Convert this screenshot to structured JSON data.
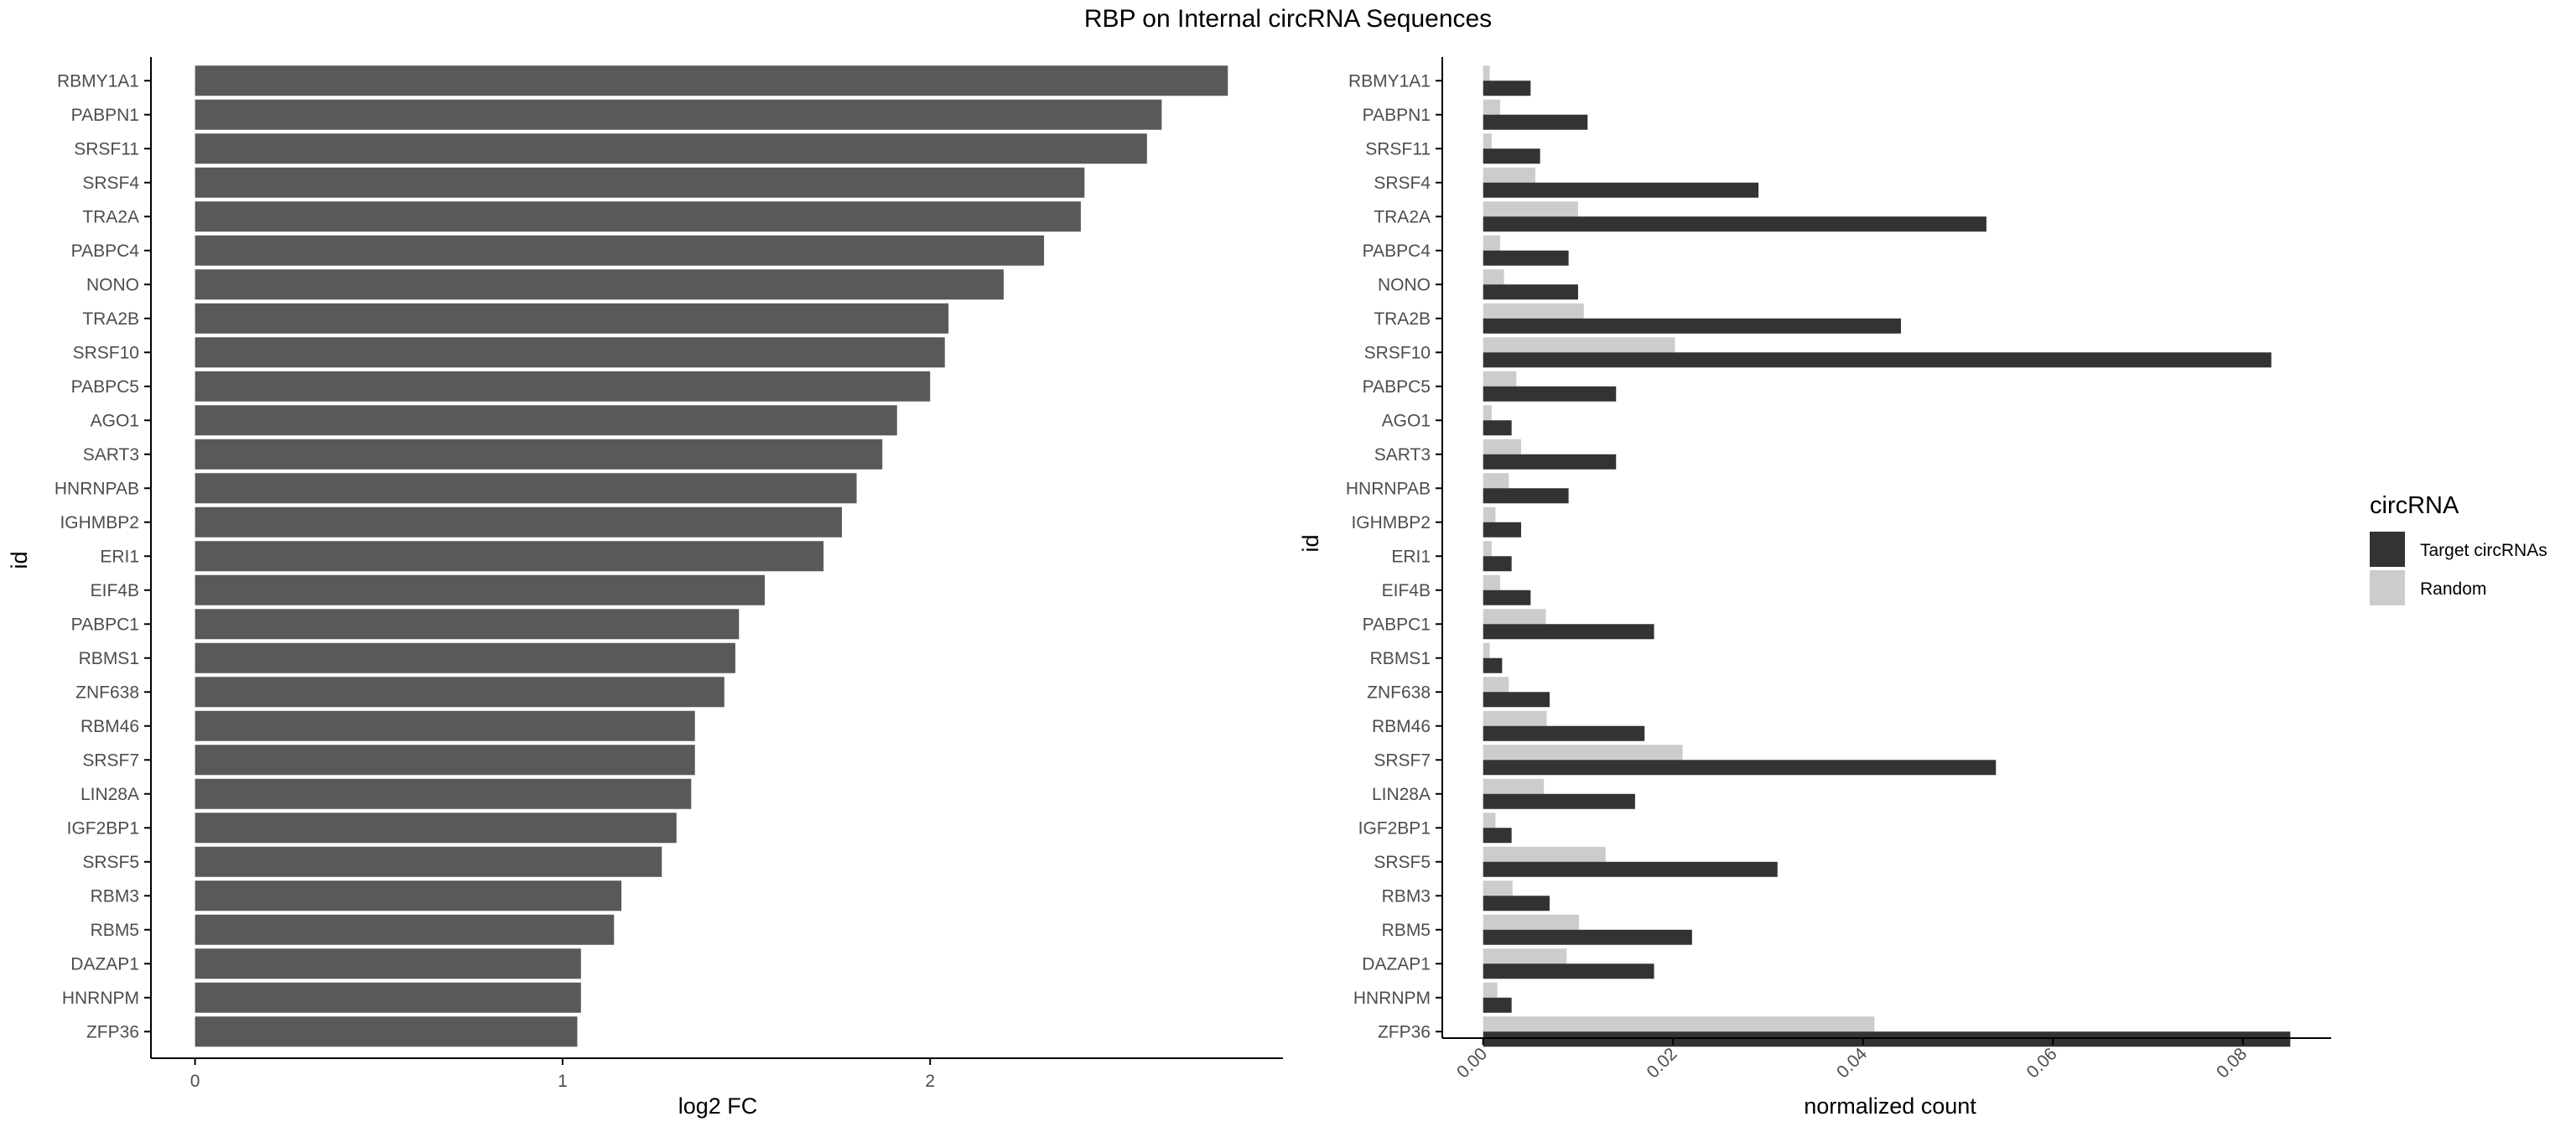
{
  "title": "RBP on Internal circRNA Sequences",
  "colors": {
    "bar_left": "#595959",
    "target": "#333333",
    "random": "#cccccc",
    "axis": "#000000",
    "tick_text": "#4d4d4d"
  },
  "chart_data": [
    {
      "type": "bar",
      "orientation": "horizontal",
      "categories": [
        "RBMY1A1",
        "PABPN1",
        "SRSF11",
        "SRSF4",
        "TRA2A",
        "PABPC4",
        "NONO",
        "TRA2B",
        "SRSF10",
        "PABPC5",
        "AGO1",
        "SART3",
        "HNRNPAB",
        "IGHMBP2",
        "ERI1",
        "EIF4B",
        "PABPC1",
        "RBMS1",
        "ZNF638",
        "RBM46",
        "SRSF7",
        "LIN28A",
        "IGF2BP1",
        "SRSF5",
        "RBM3",
        "RBM5",
        "DAZAP1",
        "HNRNPM",
        "ZFP36"
      ],
      "values": [
        2.81,
        2.63,
        2.59,
        2.42,
        2.41,
        2.31,
        2.2,
        2.05,
        2.04,
        2.0,
        1.91,
        1.87,
        1.8,
        1.76,
        1.71,
        1.55,
        1.48,
        1.47,
        1.44,
        1.36,
        1.36,
        1.35,
        1.31,
        1.27,
        1.16,
        1.14,
        1.05,
        1.05,
        1.04
      ],
      "xlabel": "log2 FC",
      "ylabel": "id",
      "xticks": [
        "0",
        "1",
        "2"
      ],
      "xlim": [
        -0.12,
        2.96
      ]
    },
    {
      "type": "bar",
      "orientation": "horizontal",
      "grouped": true,
      "categories": [
        "RBMY1A1",
        "PABPN1",
        "SRSF11",
        "SRSF4",
        "TRA2A",
        "PABPC4",
        "NONO",
        "TRA2B",
        "SRSF10",
        "PABPC5",
        "AGO1",
        "SART3",
        "HNRNPAB",
        "IGHMBP2",
        "ERI1",
        "EIF4B",
        "PABPC1",
        "RBMS1",
        "ZNF638",
        "RBM46",
        "SRSF7",
        "LIN28A",
        "IGF2BP1",
        "SRSF5",
        "RBM3",
        "RBM5",
        "DAZAP1",
        "HNRNPM",
        "ZFP36"
      ],
      "series": [
        {
          "name": "Target circRNAs",
          "values": [
            0.005,
            0.011,
            0.006,
            0.029,
            0.053,
            0.009,
            0.01,
            0.044,
            0.083,
            0.014,
            0.003,
            0.014,
            0.009,
            0.004,
            0.003,
            0.005,
            0.018,
            0.002,
            0.007,
            0.017,
            0.054,
            0.016,
            0.003,
            0.031,
            0.007,
            0.022,
            0.018,
            0.003,
            0.085
          ]
        },
        {
          "name": "Random",
          "values": [
            0.0007,
            0.0018,
            0.0009,
            0.0055,
            0.01,
            0.0018,
            0.0022,
            0.0106,
            0.0202,
            0.0035,
            0.0009,
            0.004,
            0.0027,
            0.0013,
            0.0009,
            0.0018,
            0.0066,
            0.0007,
            0.0027,
            0.0067,
            0.021,
            0.0064,
            0.0013,
            0.0129,
            0.0031,
            0.0101,
            0.0088,
            0.0015,
            0.0412
          ]
        }
      ],
      "xlabel": "normalized count",
      "ylabel": "id",
      "xticks": [
        "0.00",
        "0.02",
        "0.04",
        "0.06",
        "0.08"
      ],
      "xlim": [
        -0.0043,
        0.0893
      ],
      "legend": {
        "title": "circRNA",
        "entries": [
          "Target circRNAs",
          "Random"
        ],
        "position": "right"
      }
    }
  ]
}
